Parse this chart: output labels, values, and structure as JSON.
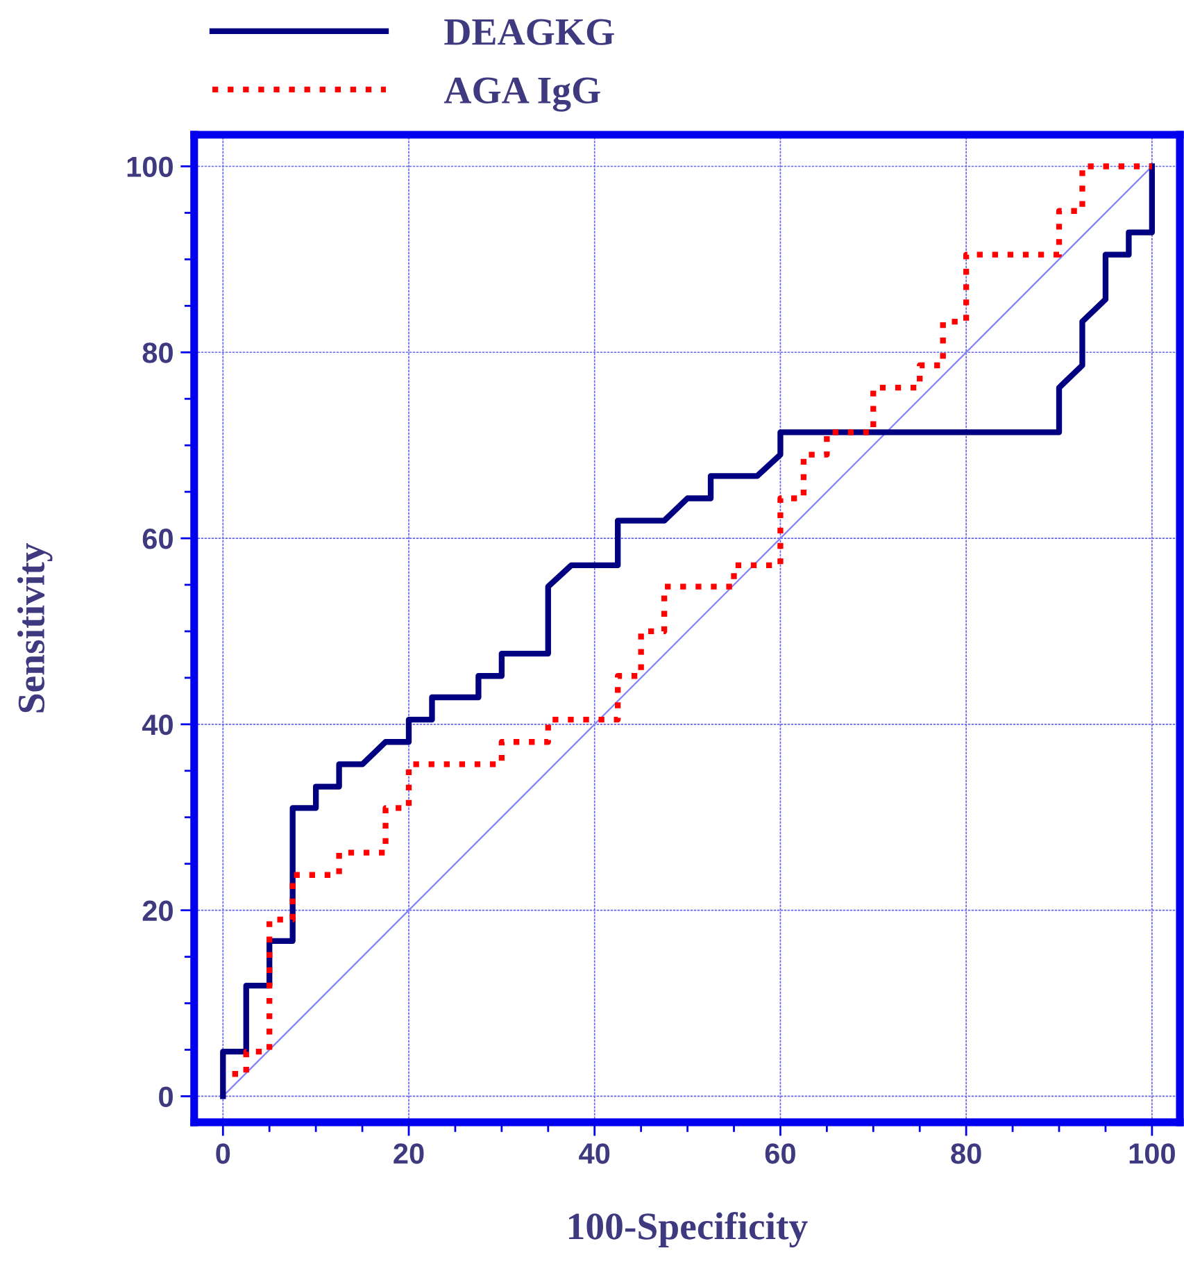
{
  "chart_data": {
    "type": "line",
    "xlabel": "100-Specificity",
    "ylabel": "Sensitivity",
    "xlim": [
      -3.1,
      103
    ],
    "ylim": [
      -2.8,
      103.4
    ],
    "xticks": [
      0,
      {
        "value": 5,
        "label": null
      },
      {
        "value": 10,
        "label": null
      },
      {
        "value": 15,
        "label": null
      },
      20,
      {
        "value": 25,
        "label": null
      },
      {
        "value": 30,
        "label": null
      },
      {
        "value": 35,
        "label": null
      },
      40,
      {
        "value": 45,
        "label": null
      },
      {
        "value": 50,
        "label": null
      },
      {
        "value": 55,
        "label": null
      },
      60,
      {
        "value": 65,
        "label": null
      },
      {
        "value": 70,
        "label": null
      },
      {
        "value": 75,
        "label": null
      },
      80,
      {
        "value": 85,
        "label": null
      },
      {
        "value": 90,
        "label": null
      },
      {
        "value": 95,
        "label": null
      },
      100
    ],
    "yticks": [
      0,
      {
        "value": 5,
        "label": null
      },
      {
        "value": 10,
        "label": null
      },
      {
        "value": 15,
        "label": null
      },
      20,
      {
        "value": 25,
        "label": null
      },
      {
        "value": 30,
        "label": null
      },
      {
        "value": 35,
        "label": null
      },
      40,
      {
        "value": 45,
        "label": null
      },
      {
        "value": 50,
        "label": null
      },
      {
        "value": 55,
        "label": null
      },
      60,
      {
        "value": 65,
        "label": null
      },
      {
        "value": 70,
        "label": null
      },
      {
        "value": 75,
        "label": null
      },
      80,
      {
        "value": 85,
        "label": null
      },
      {
        "value": 90,
        "label": null
      },
      {
        "value": 95,
        "label": null
      },
      100
    ],
    "grid": true,
    "legend": "top left",
    "series": [
      {
        "name": "DEAGKG",
        "color": "#000080",
        "line_style": "solid",
        "x": [
          0,
          0,
          2.5,
          2.5,
          5,
          5,
          7.5,
          7.5,
          10,
          10,
          12.5,
          12.5,
          15,
          17.5,
          20,
          20,
          22.5,
          22.5,
          27.5,
          27.5,
          30,
          30,
          35,
          35,
          37.5,
          42.5,
          42.5,
          47.5,
          50,
          52.5,
          52.5,
          57.5,
          60,
          60,
          90,
          90,
          92.5,
          92.5,
          95,
          95,
          97.5,
          97.5,
          100,
          100
        ],
        "values": [
          0,
          4.8,
          4.8,
          11.9,
          11.9,
          16.7,
          16.7,
          31,
          31,
          33.3,
          33.3,
          35.7,
          35.7,
          38.1,
          38.1,
          40.5,
          40.5,
          42.9,
          42.9,
          45.2,
          45.2,
          47.6,
          47.6,
          54.8,
          57.1,
          57.1,
          61.9,
          61.9,
          64.3,
          64.3,
          66.7,
          66.7,
          69,
          71.4,
          71.4,
          76.2,
          78.6,
          83.3,
          85.7,
          90.5,
          90.5,
          92.9,
          92.9,
          100
        ]
      },
      {
        "name": "AGA IgG",
        "color": "#ff0000",
        "line_style": "dotted",
        "x": [
          1,
          2.5,
          2.5,
          5,
          5,
          7.5,
          7.5,
          12.5,
          12.5,
          17.5,
          17.5,
          20,
          20,
          30,
          30,
          35,
          35,
          42.5,
          42.5,
          45,
          45,
          47.5,
          47.5,
          55,
          55,
          60,
          60,
          62.5,
          62.5,
          65,
          65,
          70,
          70,
          75,
          75,
          77.5,
          77.5,
          80,
          80,
          90,
          90,
          92.5,
          92.5,
          100
        ],
        "values": [
          2.4,
          2.4,
          4.8,
          4.8,
          19,
          19,
          23.8,
          23.8,
          26.2,
          26.2,
          31,
          31,
          35.7,
          35.7,
          38.1,
          38.1,
          40.5,
          40.5,
          45.2,
          45.2,
          50,
          50,
          54.8,
          54.8,
          57.1,
          57.1,
          64.3,
          64.3,
          69,
          69,
          71.4,
          71.4,
          76.2,
          76.2,
          78.6,
          78.6,
          83.3,
          83.3,
          90.5,
          90.5,
          95.2,
          95.2,
          100,
          100
        ]
      },
      {
        "color": "#8080ff",
        "line_style": "solid",
        "x": [
          0,
          100
        ],
        "values": [
          0,
          100
        ]
      }
    ]
  }
}
